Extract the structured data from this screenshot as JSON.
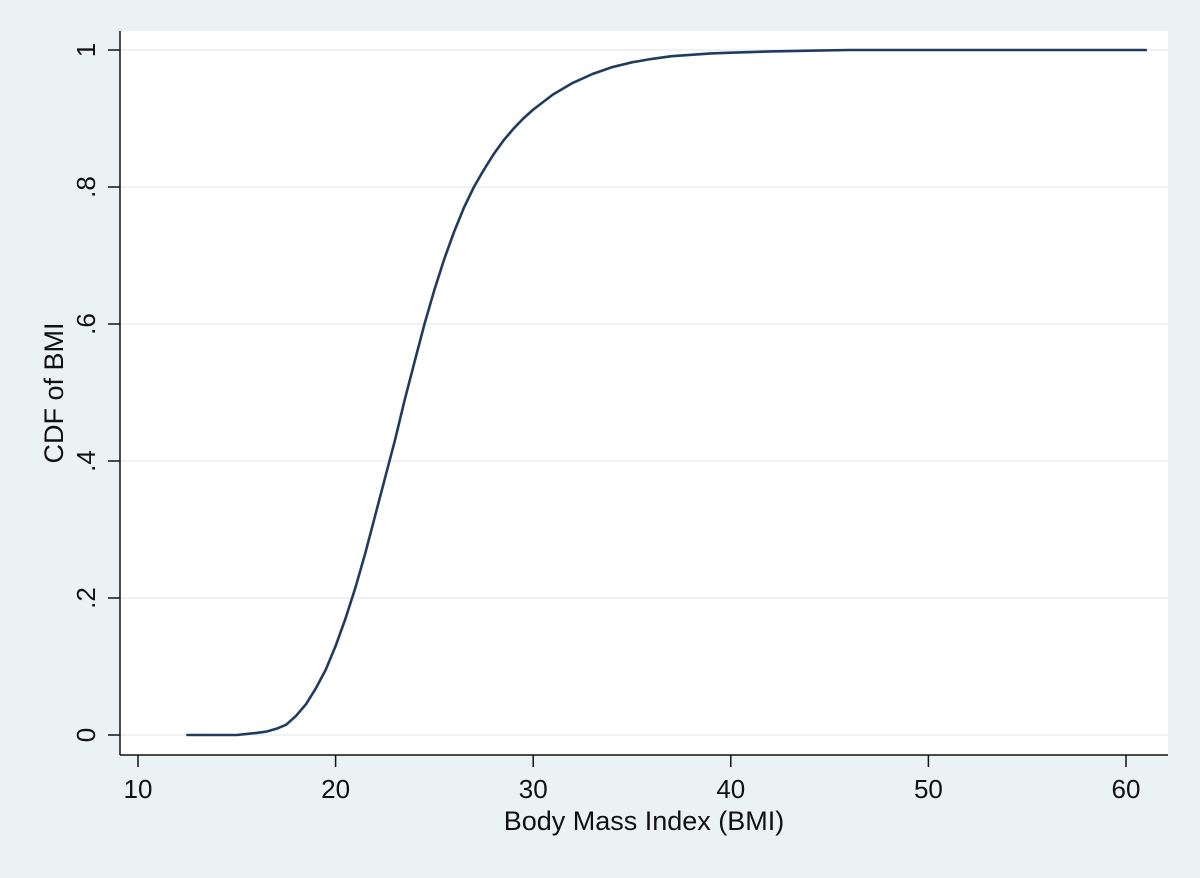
{
  "chart_data": {
    "type": "line",
    "title": "",
    "xlabel": "Body Mass Index (BMI)",
    "ylabel": "CDF of BMI",
    "xlim": [
      9,
      62
    ],
    "ylim": [
      -0.03,
      1.03
    ],
    "grid": true,
    "x_ticks": [
      10,
      20,
      30,
      40,
      50,
      60
    ],
    "x_tick_labels": [
      "10",
      "20",
      "30",
      "40",
      "50",
      "60"
    ],
    "y_ticks": [
      0,
      0.2,
      0.4,
      0.6,
      0.8,
      1
    ],
    "y_tick_labels": [
      "0",
      ".2",
      ".4",
      ".6",
      ".8",
      "1"
    ],
    "colors": {
      "line": "#1f3c5f",
      "background": "#eaf2f3",
      "plot_background": "#ffffff",
      "grid": "#e8eeee"
    },
    "series": [
      {
        "x": [
          12.5,
          14,
          15,
          16,
          16.5,
          17,
          17.5,
          18,
          18.5,
          19,
          19.5,
          20,
          20.5,
          21,
          21.5,
          22,
          22.5,
          23,
          23.5,
          24,
          24.5,
          25,
          25.5,
          26,
          26.5,
          27,
          27.5,
          28,
          28.5,
          29,
          29.5,
          30,
          31,
          32,
          33,
          34,
          35,
          36,
          37,
          38,
          39,
          40,
          42,
          44,
          46,
          50,
          55,
          61
        ],
        "y": [
          0,
          0,
          0,
          0.003,
          0.005,
          0.009,
          0.015,
          0.028,
          0.045,
          0.068,
          0.095,
          0.13,
          0.17,
          0.215,
          0.265,
          0.32,
          0.375,
          0.43,
          0.49,
          0.545,
          0.6,
          0.65,
          0.695,
          0.735,
          0.77,
          0.8,
          0.825,
          0.848,
          0.868,
          0.885,
          0.9,
          0.913,
          0.935,
          0.952,
          0.965,
          0.975,
          0.982,
          0.987,
          0.991,
          0.993,
          0.995,
          0.996,
          0.998,
          0.999,
          1.0,
          1.0,
          1.0,
          1.0
        ]
      }
    ]
  }
}
